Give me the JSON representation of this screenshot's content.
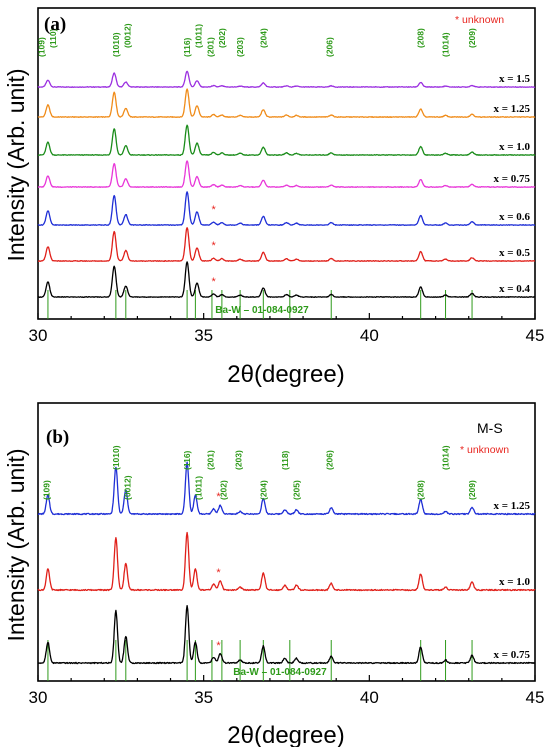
{
  "chart_data": [
    {
      "panel": "(a)",
      "type": "line",
      "xlabel": "2θ(degree)",
      "ylabel": "Intensity (Arb. unit)",
      "xlim": [
        30,
        45
      ],
      "xticks": [
        "30",
        "35",
        "40",
        "45"
      ],
      "legend_note": "* unknown",
      "reference": "Ba-W – 01-084-0927",
      "reference_peaks": [
        30.3,
        32.35,
        32.65,
        34.5,
        34.75,
        35.25,
        35.55,
        36.1,
        36.8,
        37.6,
        38.85,
        41.55,
        42.3,
        43.1
      ],
      "hkl_labels": [
        {
          "x": 30.1,
          "label": "(109)"
        },
        {
          "x": 30.45,
          "label": "(110)"
        },
        {
          "x": 32.35,
          "label": "(1010)"
        },
        {
          "x": 32.7,
          "label": "(0012)"
        },
        {
          "x": 34.5,
          "label": "(116)"
        },
        {
          "x": 34.85,
          "label": "(1011)"
        },
        {
          "x": 35.2,
          "label": "(201)"
        },
        {
          "x": 35.55,
          "label": "(202)"
        },
        {
          "x": 36.1,
          "label": "(203)"
        },
        {
          "x": 36.8,
          "label": "(204)"
        },
        {
          "x": 38.8,
          "label": "(206)"
        },
        {
          "x": 41.55,
          "label": "(208)"
        },
        {
          "x": 42.3,
          "label": "(1014)"
        },
        {
          "x": 43.1,
          "label": "(209)"
        }
      ],
      "unknown_markers": [
        {
          "series": "x = 0.6",
          "x": 35.3
        },
        {
          "series": "x = 0.5",
          "x": 35.3
        },
        {
          "series": "x = 0.4",
          "x": 35.3
        }
      ],
      "peaks": [
        {
          "x": 30.3,
          "h": 0.3
        },
        {
          "x": 32.3,
          "h": 0.62
        },
        {
          "x": 32.65,
          "h": 0.22
        },
        {
          "x": 34.5,
          "h": 0.7
        },
        {
          "x": 34.8,
          "h": 0.28
        },
        {
          "x": 35.3,
          "h": 0.06
        },
        {
          "x": 35.55,
          "h": 0.05
        },
        {
          "x": 36.1,
          "h": 0.04
        },
        {
          "x": 36.8,
          "h": 0.18
        },
        {
          "x": 37.5,
          "h": 0.05
        },
        {
          "x": 37.8,
          "h": 0.04
        },
        {
          "x": 38.85,
          "h": 0.05
        },
        {
          "x": 41.55,
          "h": 0.2
        },
        {
          "x": 42.3,
          "h": 0.04
        },
        {
          "x": 43.1,
          "h": 0.07
        }
      ],
      "series": [
        {
          "name": "x = 1.5",
          "color": "#9b30e0",
          "scale": 0.45
        },
        {
          "name": "x = 1.25",
          "color": "#f08c1a",
          "scale": 0.8
        },
        {
          "name": "x = 1.0",
          "color": "#1a8c1a",
          "scale": 0.85
        },
        {
          "name": "x = 0.75",
          "color": "#e837d8",
          "scale": 0.75
        },
        {
          "name": "x = 0.6",
          "color": "#1f2fd6",
          "scale": 0.95
        },
        {
          "name": "x = 0.5",
          "color": "#e0201a",
          "scale": 0.95
        },
        {
          "name": "x = 0.4",
          "color": "#000000",
          "scale": 1.0
        }
      ]
    },
    {
      "panel": "(b)",
      "type": "line",
      "xlabel": "2θ(degree)",
      "ylabel": "Intensity (Arb. unit)",
      "xlim": [
        30,
        45
      ],
      "xticks": [
        "30",
        "35",
        "40",
        "45"
      ],
      "sample_label": "M-S",
      "legend_note": "* unknown",
      "reference": "Ba-W – 01-084-0927",
      "reference_peaks": [
        30.3,
        32.35,
        32.65,
        34.5,
        34.75,
        35.25,
        35.55,
        36.1,
        36.8,
        37.6,
        38.85,
        41.55,
        42.3,
        43.1
      ],
      "hkl_labels": [
        {
          "x": 30.25,
          "label": "(109)"
        },
        {
          "x": 32.35,
          "label": "(1010)"
        },
        {
          "x": 32.7,
          "label": "(0012)"
        },
        {
          "x": 34.5,
          "label": "(116)"
        },
        {
          "x": 34.85,
          "label": "(1011)"
        },
        {
          "x": 35.2,
          "label": "(201)"
        },
        {
          "x": 35.6,
          "label": "(202)"
        },
        {
          "x": 36.05,
          "label": "(203)"
        },
        {
          "x": 36.8,
          "label": "(204)"
        },
        {
          "x": 37.45,
          "label": "(118)"
        },
        {
          "x": 37.8,
          "label": "(205)"
        },
        {
          "x": 38.8,
          "label": "(206)"
        },
        {
          "x": 41.55,
          "label": "(208)"
        },
        {
          "x": 42.3,
          "label": "(1014)"
        },
        {
          "x": 43.1,
          "label": "(209)"
        }
      ],
      "unknown_markers": [
        {
          "series": "x = 1.25",
          "x": 35.45
        },
        {
          "series": "x = 1.0",
          "x": 35.45
        },
        {
          "series": "x = 0.75",
          "x": 35.45
        }
      ],
      "peaks": [
        {
          "x": 30.3,
          "h": 0.22
        },
        {
          "x": 32.35,
          "h": 0.55
        },
        {
          "x": 32.65,
          "h": 0.28
        },
        {
          "x": 34.5,
          "h": 0.6
        },
        {
          "x": 34.75,
          "h": 0.22
        },
        {
          "x": 35.3,
          "h": 0.06
        },
        {
          "x": 35.5,
          "h": 0.1
        },
        {
          "x": 36.1,
          "h": 0.03
        },
        {
          "x": 36.8,
          "h": 0.18
        },
        {
          "x": 37.45,
          "h": 0.05
        },
        {
          "x": 37.8,
          "h": 0.05
        },
        {
          "x": 38.85,
          "h": 0.07
        },
        {
          "x": 41.55,
          "h": 0.17
        },
        {
          "x": 42.3,
          "h": 0.03
        },
        {
          "x": 43.1,
          "h": 0.08
        }
      ],
      "series": [
        {
          "name": "x = 1.25",
          "color": "#1f2fd6",
          "scale": 0.9
        },
        {
          "name": "x = 1.0",
          "color": "#e0201a",
          "scale": 1.0
        },
        {
          "name": "x = 0.75",
          "color": "#000000",
          "scale": 1.0
        }
      ]
    }
  ]
}
